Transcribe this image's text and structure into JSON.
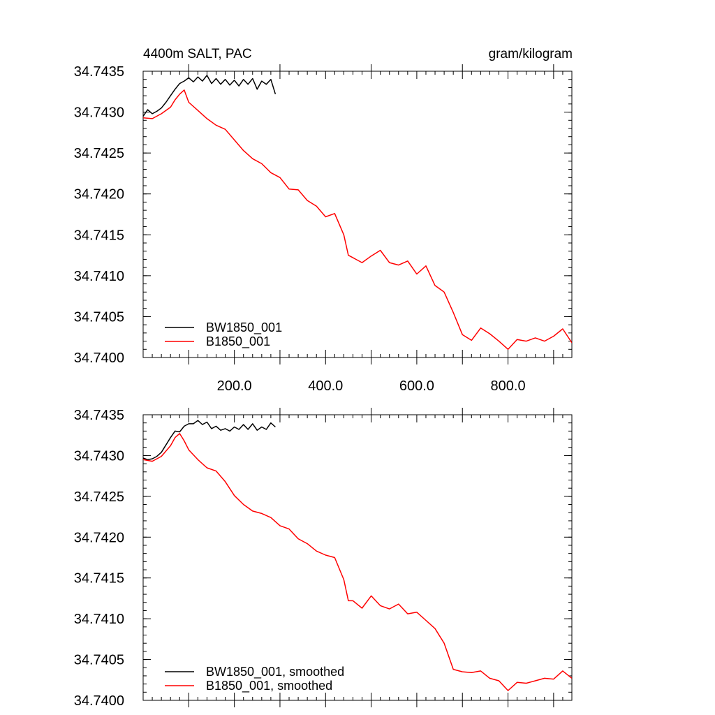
{
  "figure": {
    "title_left": "4400m SALT, PAC",
    "title_right": "gram/kilogram"
  },
  "chart_data": [
    {
      "type": "line",
      "panel": "top",
      "title": "4400m SALT, PAC",
      "units": "gram/kilogram",
      "xlabel": "",
      "ylabel": "",
      "xlim": [
        0,
        940
      ],
      "ylim": [
        34.74,
        34.7435
      ],
      "xticks": [
        200,
        400,
        600,
        800
      ],
      "xtick_labels": [
        "200.0",
        "400.0",
        "600.0",
        "800.0"
      ],
      "yticks": [
        34.74,
        34.7405,
        34.741,
        34.7415,
        34.742,
        34.7425,
        34.743,
        34.7435
      ],
      "ytick_labels": [
        "34.7400",
        "34.7405",
        "34.7410",
        "34.7415",
        "34.7420",
        "34.7425",
        "34.7430",
        "34.7435"
      ],
      "grid": false,
      "legend_position": "bottom-left",
      "series": [
        {
          "name": "BW1850_001",
          "color": "#000000",
          "x": [
            0,
            10,
            20,
            30,
            40,
            50,
            60,
            70,
            80,
            90,
            100,
            110,
            120,
            130,
            140,
            150,
            160,
            170,
            180,
            190,
            200,
            210,
            220,
            230,
            240,
            250,
            260,
            270,
            280,
            290
          ],
          "y": [
            34.74295,
            34.74303,
            34.74298,
            34.74301,
            34.74305,
            34.74312,
            34.7432,
            34.74328,
            34.74335,
            34.74338,
            34.74342,
            34.74337,
            34.74343,
            34.74338,
            34.74345,
            34.74335,
            34.74341,
            34.74334,
            34.7434,
            34.74333,
            34.74339,
            34.74332,
            34.7434,
            34.74334,
            34.74341,
            34.74328,
            34.74338,
            34.74334,
            34.7434,
            34.74322
          ]
        },
        {
          "name": "B1850_001",
          "color": "#ff0000",
          "x": [
            0,
            20,
            40,
            60,
            70,
            80,
            90,
            100,
            120,
            140,
            160,
            180,
            200,
            220,
            240,
            260,
            280,
            300,
            320,
            340,
            360,
            380,
            400,
            420,
            440,
            450,
            460,
            480,
            500,
            520,
            540,
            560,
            580,
            600,
            620,
            640,
            660,
            680,
            700,
            720,
            740,
            760,
            780,
            800,
            820,
            840,
            860,
            880,
            900,
            920,
            940
          ],
          "y": [
            34.74293,
            34.74292,
            34.74298,
            34.74306,
            34.74315,
            34.74322,
            34.74327,
            34.74312,
            34.74302,
            34.74292,
            34.74284,
            34.74279,
            34.74266,
            34.74253,
            34.74243,
            34.74237,
            34.74226,
            34.7422,
            34.74206,
            34.74205,
            34.74192,
            34.74185,
            34.74172,
            34.74176,
            34.7415,
            34.74125,
            34.74122,
            34.74116,
            34.74124,
            34.74131,
            34.74116,
            34.74113,
            34.74118,
            34.74102,
            34.74112,
            34.74088,
            34.7408,
            34.74055,
            34.74028,
            34.74021,
            34.74036,
            34.74029,
            34.7402,
            34.7401,
            34.74022,
            34.7402,
            34.74024,
            34.7402,
            34.74026,
            34.74035,
            34.74018
          ]
        }
      ]
    },
    {
      "type": "line",
      "panel": "bottom",
      "title": "",
      "xlabel": "",
      "ylabel": "",
      "xlim": [
        0,
        940
      ],
      "ylim": [
        34.74,
        34.7435
      ],
      "yticks": [
        34.74,
        34.7405,
        34.741,
        34.7415,
        34.742,
        34.7425,
        34.743,
        34.7435
      ],
      "ytick_labels": [
        "34.7400",
        "34.7405",
        "34.7410",
        "34.7415",
        "34.7420",
        "34.7425",
        "34.7430",
        "34.7435"
      ],
      "grid": false,
      "legend_position": "bottom-left",
      "series": [
        {
          "name": "BW1850_001, smoothed",
          "color": "#000000",
          "x": [
            0,
            10,
            20,
            30,
            40,
            50,
            60,
            70,
            80,
            90,
            100,
            110,
            120,
            130,
            140,
            150,
            160,
            170,
            180,
            190,
            200,
            210,
            220,
            230,
            240,
            250,
            260,
            270,
            280,
            290
          ],
          "y": [
            34.74297,
            34.74295,
            34.74296,
            34.74299,
            34.74304,
            34.74313,
            34.74322,
            34.7433,
            34.74329,
            34.74336,
            34.74339,
            34.74339,
            34.74343,
            34.74338,
            34.74341,
            34.74333,
            34.74336,
            34.74331,
            34.74333,
            34.7433,
            34.74335,
            34.74332,
            34.74338,
            34.74332,
            34.74339,
            34.74331,
            34.74335,
            34.74332,
            34.7434,
            34.74335
          ]
        },
        {
          "name": "B1850_001, smoothed",
          "color": "#ff0000",
          "x": [
            0,
            20,
            40,
            60,
            70,
            80,
            90,
            100,
            120,
            140,
            160,
            180,
            200,
            220,
            240,
            260,
            280,
            300,
            320,
            340,
            360,
            380,
            400,
            420,
            440,
            450,
            460,
            480,
            500,
            520,
            540,
            560,
            580,
            600,
            620,
            640,
            660,
            680,
            700,
            720,
            740,
            760,
            780,
            800,
            820,
            840,
            860,
            880,
            900,
            920,
            940
          ],
          "y": [
            34.74295,
            34.74293,
            34.74299,
            34.74312,
            34.74322,
            34.74327,
            34.74318,
            34.74307,
            34.74295,
            34.74285,
            34.74281,
            34.74268,
            34.74251,
            34.7424,
            34.74232,
            34.74229,
            34.74224,
            34.74214,
            34.7421,
            34.74198,
            34.74192,
            34.74183,
            34.74178,
            34.74175,
            34.74148,
            34.74122,
            34.74122,
            34.74113,
            34.74128,
            34.74116,
            34.74112,
            34.74118,
            34.74106,
            34.74108,
            34.74098,
            34.74088,
            34.7407,
            34.74038,
            34.74035,
            34.74034,
            34.74036,
            34.74027,
            34.74024,
            34.74012,
            34.74022,
            34.74021,
            34.74024,
            34.74027,
            34.74026,
            34.74036,
            34.74027
          ]
        }
      ]
    }
  ]
}
